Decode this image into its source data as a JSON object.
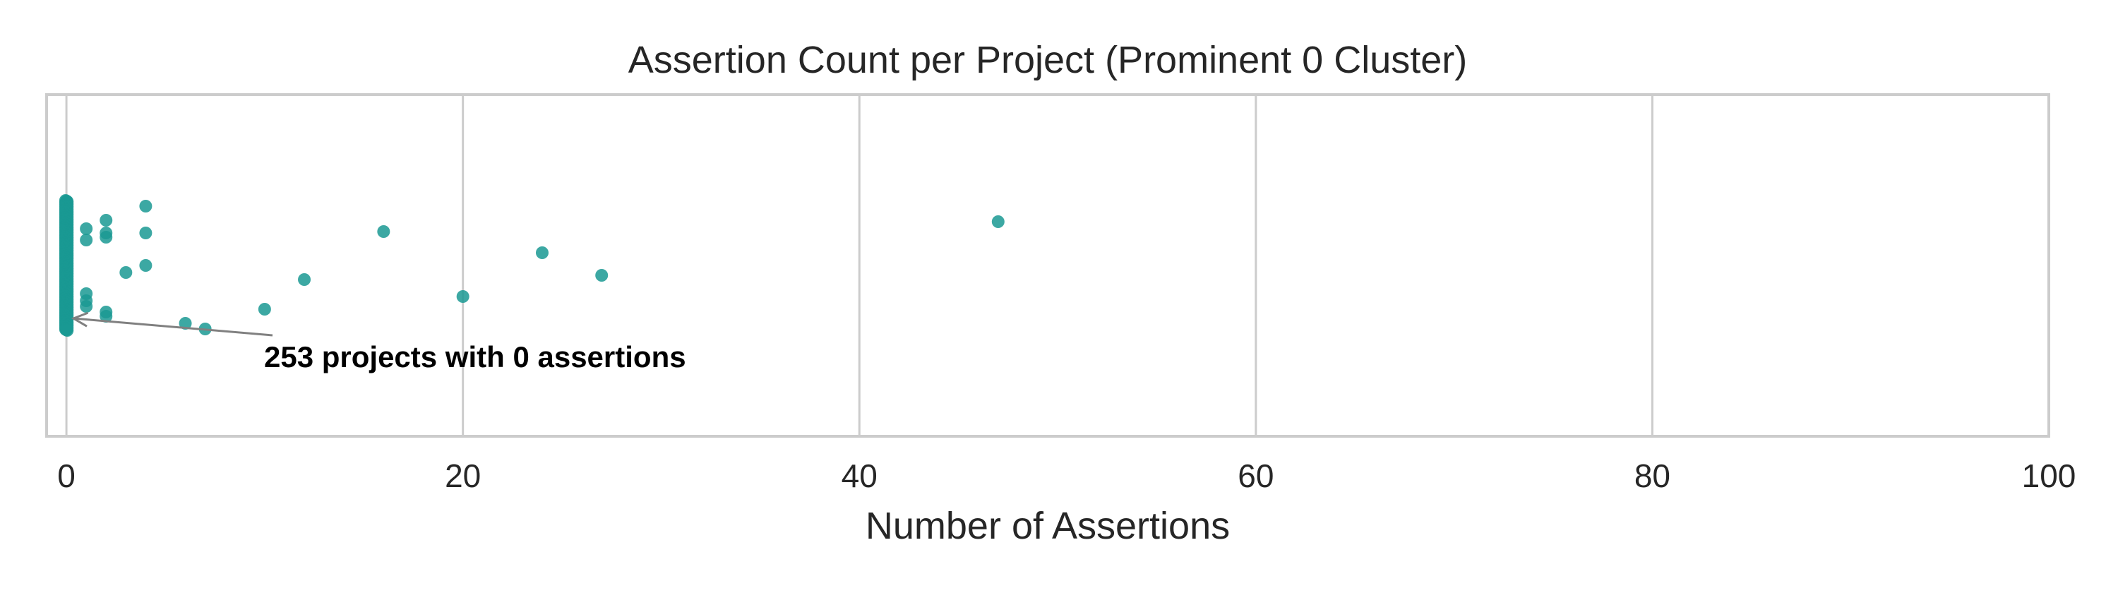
{
  "chart_data": {
    "type": "scatter",
    "title": "Assertion Count per Project (Prominent 0 Cluster)",
    "xlabel": "Number of Assertions",
    "ylabel": "",
    "xlim": [
      -1,
      100
    ],
    "xticks": [
      0,
      20,
      40,
      60,
      80,
      100
    ],
    "grid": "vertical",
    "point_color": "#1a9993",
    "annotation": {
      "text": "253 projects with 0 assertions",
      "points_to_x": 0
    },
    "zero_cluster": {
      "x": 0,
      "count": 253
    },
    "nonzero_points": [
      {
        "x": 1,
        "jitter": 0.26
      },
      {
        "x": 1,
        "jitter": 0.18
      },
      {
        "x": 1,
        "jitter": -0.2
      },
      {
        "x": 1,
        "jitter": -0.29
      },
      {
        "x": 1,
        "jitter": -0.25
      },
      {
        "x": 2,
        "jitter": 0.32
      },
      {
        "x": 2,
        "jitter": 0.23
      },
      {
        "x": 2,
        "jitter": 0.2
      },
      {
        "x": 2,
        "jitter": -0.33
      },
      {
        "x": 2,
        "jitter": -0.36
      },
      {
        "x": 3,
        "jitter": -0.05
      },
      {
        "x": 4,
        "jitter": 0.42
      },
      {
        "x": 4,
        "jitter": 0.23
      },
      {
        "x": 4,
        "jitter": -0.0
      },
      {
        "x": 6,
        "jitter": -0.41
      },
      {
        "x": 7,
        "jitter": -0.45
      },
      {
        "x": 10,
        "jitter": -0.31
      },
      {
        "x": 12,
        "jitter": -0.1
      },
      {
        "x": 16,
        "jitter": 0.24
      },
      {
        "x": 20,
        "jitter": -0.22
      },
      {
        "x": 24,
        "jitter": 0.09
      },
      {
        "x": 27,
        "jitter": -0.07
      },
      {
        "x": 47,
        "jitter": 0.31
      }
    ]
  }
}
